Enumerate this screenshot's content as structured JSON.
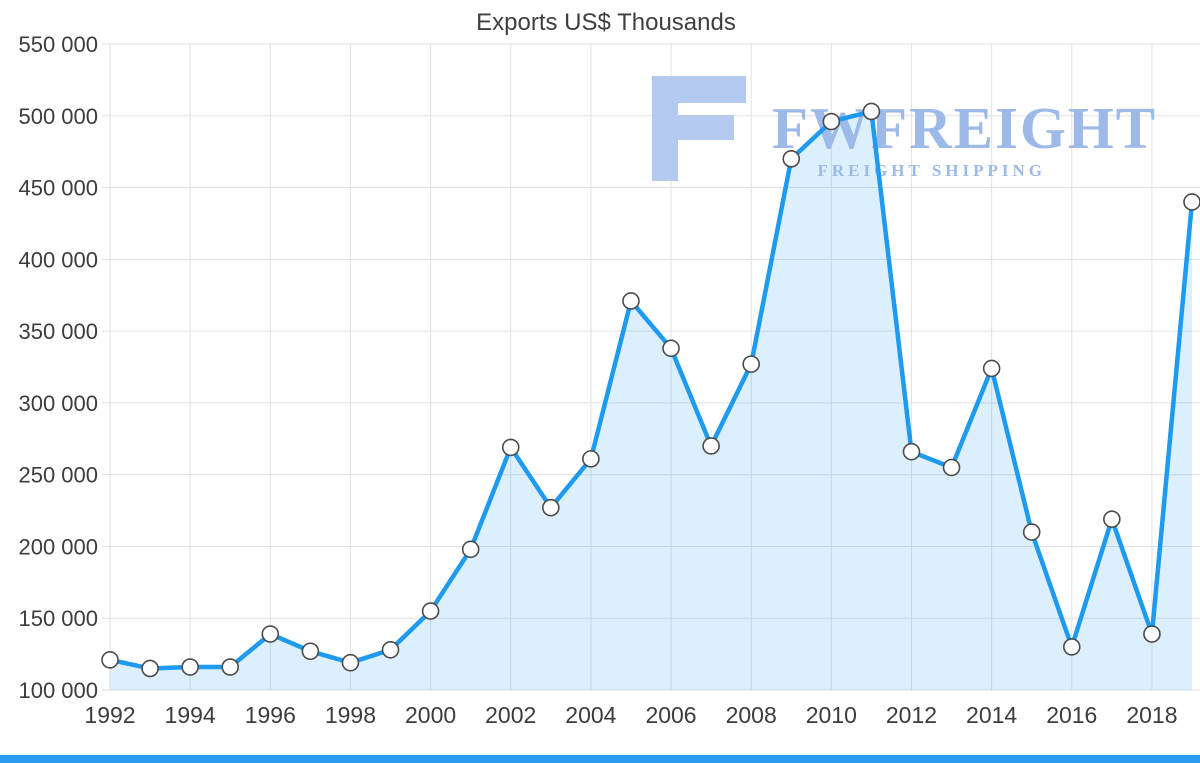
{
  "page": {
    "background": "#ffffff",
    "bottom_bar_color": "#2b9cf2"
  },
  "watermark": {
    "brand": "FWFREIGHT",
    "tagline": "FREIGHT SHIPPING",
    "color": "#9db9e7",
    "icon": "fw-logo-icon"
  },
  "chart_data": {
    "type": "area",
    "title": "Exports US$ Thousands",
    "x": [
      1992,
      1993,
      1994,
      1995,
      1996,
      1997,
      1998,
      1999,
      2000,
      2001,
      2002,
      2003,
      2004,
      2005,
      2006,
      2007,
      2008,
      2009,
      2010,
      2011,
      2012,
      2013,
      2014,
      2015,
      2016,
      2017,
      2018,
      2019
    ],
    "values": [
      121000,
      115000,
      116000,
      116000,
      139000,
      127000,
      119000,
      128000,
      155000,
      198000,
      269000,
      227000,
      261000,
      371000,
      338000,
      270000,
      327000,
      470000,
      496000,
      503000,
      266000,
      255000,
      324000,
      210000,
      130000,
      219000,
      139000,
      440000
    ],
    "ylim": [
      100000,
      550000
    ],
    "ytick_step": 50000,
    "xtick_labels": [
      1992,
      1994,
      1996,
      1998,
      2000,
      2002,
      2004,
      2006,
      2008,
      2010,
      2012,
      2014,
      2016,
      2018
    ],
    "grid": true,
    "legend": false,
    "number_format": "space-thousands",
    "line_color": "#1e9af0",
    "area_fill": "rgba(30,154,240,0.16)",
    "marker_fill": "#ffffff",
    "marker_stroke": "#4b4b4b",
    "grid_color": "#e1e1e1",
    "axis_text_color": "#3c3c3c"
  }
}
